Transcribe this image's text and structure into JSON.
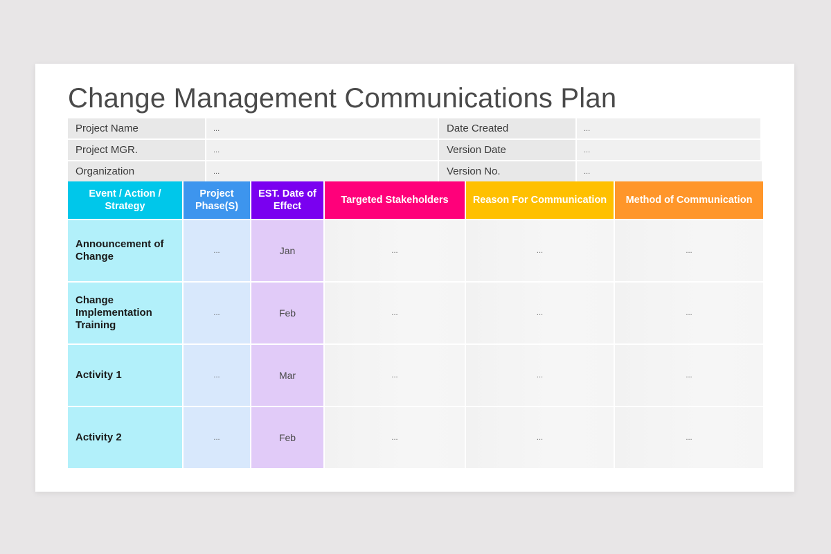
{
  "title": "Change Management Communications Plan",
  "info_fields": [
    {
      "label": "Project Name",
      "value": "..."
    },
    {
      "label": "Date Created",
      "value": "..."
    },
    {
      "label": "Project MGR.",
      "value": "..."
    },
    {
      "label": "Version Date",
      "value": "..."
    },
    {
      "label": "Organization",
      "value": "..."
    },
    {
      "label": "Version No.",
      "value": "..."
    }
  ],
  "table": {
    "headers": [
      {
        "label": "Event / Action / Strategy",
        "color": "#00c7ea"
      },
      {
        "label": "Project Phase(S)",
        "color": "#3d95ee"
      },
      {
        "label": "EST. Date of Effect",
        "color": "#7a00f0"
      },
      {
        "label": "Targeted Stakeholders",
        "color": "#ff007a"
      },
      {
        "label": "Reason For Communication",
        "color": "#ffc000"
      },
      {
        "label": "Method of Communication",
        "color": "#ff962a"
      }
    ],
    "rows": [
      {
        "event": "Announcement of Change",
        "phase": "...",
        "date": "Jan",
        "stakeholders": "...",
        "reason": "...",
        "method": "..."
      },
      {
        "event": "Change Implementation Training",
        "phase": "...",
        "date": "Feb",
        "stakeholders": "...",
        "reason": "...",
        "method": "..."
      },
      {
        "event": "Activity 1",
        "phase": "...",
        "date": "Mar",
        "stakeholders": "...",
        "reason": "...",
        "method": "..."
      },
      {
        "event": "Activity 2",
        "phase": "...",
        "date": "Feb",
        "stakeholders": "...",
        "reason": "...",
        "method": "..."
      }
    ]
  }
}
